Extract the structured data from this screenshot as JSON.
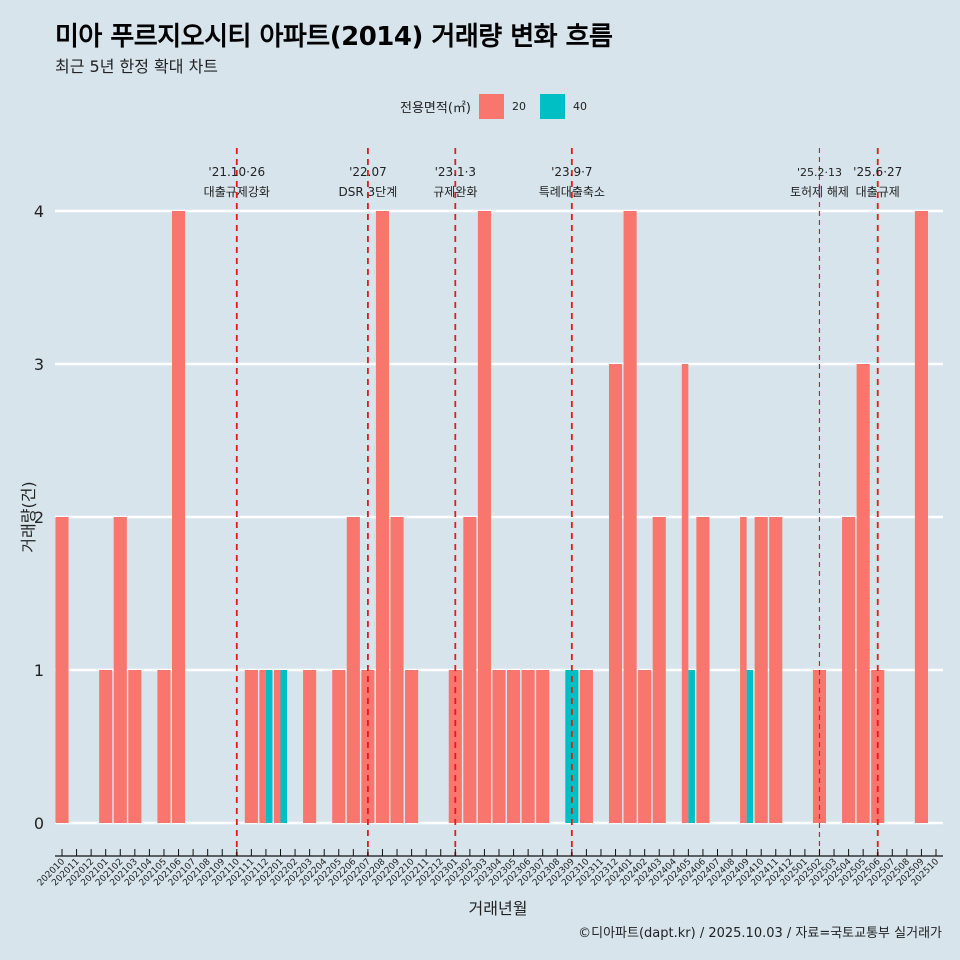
{
  "title": "미아 푸르지오시티 아파트(2014) 거래량 변화 흐름",
  "subtitle": "최근 5년 한정 확대 차트",
  "footer": "©디아파트(dapt.kr) / 2025.10.03 / 자료=국토교통부 실거래가",
  "legend": {
    "title": "전용면적(㎡)",
    "items": [
      {
        "label": "20",
        "color": "#f8766d"
      },
      {
        "label": "40",
        "color": "#00bfc4"
      }
    ]
  },
  "chart_data": {
    "type": "bar",
    "title": "미아 푸르지오시티 아파트(2014) 거래량 변화 흐름",
    "subtitle": "최근 5년 한정 확대 차트",
    "xlabel": "거래년월",
    "ylabel": "거래량(건)",
    "ylim": [
      0,
      4
    ],
    "yticks": [
      0,
      1,
      2,
      3,
      4
    ],
    "grid": true,
    "legend_position": "top",
    "categories": [
      "202010",
      "202011",
      "202012",
      "202101",
      "202102",
      "202103",
      "202104",
      "202105",
      "202106",
      "202107",
      "202108",
      "202109",
      "202110",
      "202111",
      "202112",
      "202201",
      "202202",
      "202203",
      "202204",
      "202205",
      "202206",
      "202207",
      "202208",
      "202209",
      "202210",
      "202211",
      "202212",
      "202301",
      "202302",
      "202303",
      "202304",
      "202305",
      "202306",
      "202307",
      "202308",
      "202309",
      "202310",
      "202311",
      "202312",
      "202401",
      "202402",
      "202403",
      "202404",
      "202405",
      "202406",
      "202407",
      "202408",
      "202409",
      "202410",
      "202411",
      "202412",
      "202501",
      "202502",
      "202503",
      "202504",
      "202505",
      "202506",
      "202507",
      "202508",
      "202509",
      "202510"
    ],
    "series": [
      {
        "name": "20",
        "color": "#f8766d",
        "values": [
          2,
          0,
          0,
          1,
          2,
          1,
          0,
          1,
          4,
          0,
          0,
          0,
          0,
          1,
          1,
          1,
          0,
          1,
          0,
          1,
          2,
          1,
          4,
          2,
          1,
          0,
          0,
          1,
          2,
          4,
          1,
          1,
          1,
          1,
          0,
          0,
          1,
          0,
          3,
          4,
          1,
          2,
          0,
          3,
          2,
          0,
          0,
          2,
          2,
          2,
          0,
          0,
          1,
          0,
          2,
          3,
          1,
          0,
          0,
          4,
          0
        ]
      },
      {
        "name": "40",
        "color": "#00bfc4",
        "values": [
          0,
          0,
          0,
          0,
          0,
          0,
          0,
          0,
          0,
          0,
          0,
          0,
          0,
          0,
          1,
          1,
          0,
          0,
          0,
          0,
          0,
          0,
          0,
          0,
          0,
          0,
          0,
          0,
          0,
          0,
          0,
          0,
          0,
          0,
          0,
          1,
          0,
          0,
          0,
          0,
          0,
          0,
          0,
          1,
          0,
          0,
          0,
          1,
          0,
          0,
          0,
          0,
          0,
          0,
          0,
          0,
          0,
          0,
          0,
          0,
          0
        ]
      }
    ],
    "annotations": [
      {
        "category": "202110",
        "date": "'21.10·26",
        "label": "대출규제강화"
      },
      {
        "category": "202207",
        "date": "'22.07",
        "label": "DSR 3단계"
      },
      {
        "category": "202301",
        "date": "'23.1·3",
        "label": "규제완화"
      },
      {
        "category": "202309",
        "date": "'23.9·7",
        "label": "특례대출축소"
      },
      {
        "category": "202502",
        "date": "'25.2·13",
        "label": "토허제 해제",
        "thin": true
      },
      {
        "category": "202506",
        "date": "'25.6·27",
        "label": "대출규제"
      }
    ],
    "annotation_color": "#e41a1c"
  }
}
